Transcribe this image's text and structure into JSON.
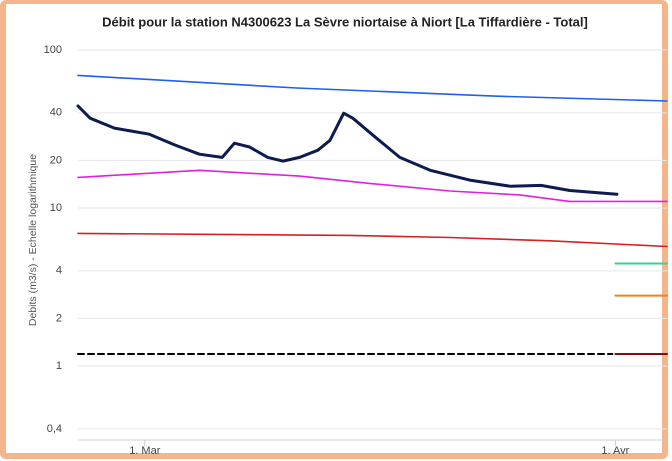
{
  "chart_data": {
    "type": "line",
    "title": "Débit pour la station N4300623 La Sèvre niortaise à Niort [La Tiffardière - Total]",
    "y_label": "Debits (m3/s) - Echelle logarithmique",
    "ylog": true,
    "grid": true,
    "xlim": [
      -4.4,
      34.4
    ],
    "xticks": [
      {
        "value": 0,
        "label": "1. Mar"
      },
      {
        "value": 31,
        "label": "1. Avr"
      }
    ],
    "ylim": [
      0.34,
      119
    ],
    "yticks": [
      {
        "value": 0.4,
        "label": "0,4"
      },
      1,
      2,
      4,
      10,
      20,
      40,
      100
    ],
    "series": [
      {
        "color": "#2060e8",
        "width": 1.6,
        "dash": false,
        "x": [
          -4.4,
          10,
          23,
          34.4
        ],
        "values": [
          69,
          57.4,
          51,
          47.5
        ]
      },
      {
        "color": "#e020e0",
        "width": 1.6,
        "dash": false,
        "x": [
          -4.4,
          3.6,
          10.2,
          14.8,
          20.1,
          24.7,
          28,
          34.4
        ],
        "values": [
          15.6,
          17.3,
          15.9,
          14.3,
          12.8,
          12.1,
          11,
          11
        ]
      },
      {
        "color": "#d42020",
        "width": 1.6,
        "dash": false,
        "x": [
          -4.4,
          13.5,
          20.1,
          26.7,
          34.4
        ],
        "values": [
          6.9,
          6.7,
          6.5,
          6.2,
          5.7
        ]
      },
      {
        "color": "#3cd090",
        "width": 2,
        "dash": false,
        "x": [
          31,
          34.4
        ],
        "values": [
          4.45,
          4.45
        ]
      },
      {
        "color": "#f08020",
        "width": 2,
        "dash": false,
        "x": [
          31,
          34.4
        ],
        "values": [
          2.79,
          2.79
        ]
      },
      {
        "color": "#7a1010",
        "width": 2,
        "dash": false,
        "x": [
          31,
          34.4
        ],
        "values": [
          1.19,
          1.19
        ]
      },
      {
        "color": "#000000",
        "width": 2,
        "dash": true,
        "x": [
          -4.4,
          30.8
        ],
        "values": [
          1.19,
          1.19
        ]
      },
      {
        "color": "#0d1b4f",
        "width": 3,
        "dash": false,
        "x": [
          -4.4,
          -3.6,
          -2,
          0.3,
          2,
          3.6,
          5.1,
          5.9,
          6.9,
          8.1,
          9.1,
          10.2,
          11.4,
          12.2,
          13.1,
          13.7,
          15.2,
          16.8,
          18.8,
          21.4,
          24.1,
          26.1,
          28,
          31.1
        ],
        "values": [
          44.2,
          37,
          32,
          29.3,
          25,
          21.9,
          20.9,
          25.7,
          24.3,
          20.9,
          19.8,
          20.9,
          23.2,
          26.8,
          39.8,
          37,
          28,
          20.9,
          17.3,
          15,
          13.7,
          13.9,
          12.9,
          12.2
        ]
      }
    ]
  }
}
